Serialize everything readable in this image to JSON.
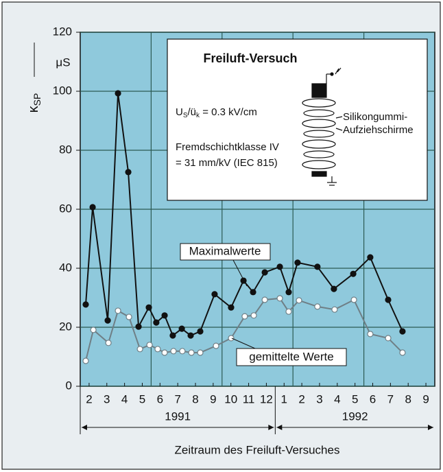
{
  "chart_data": {
    "type": "line",
    "inset": {
      "title": "Freiluft-Versuch",
      "formula": [
        "U",
        "S",
        "/ü",
        "k",
        " = 0.3 kV/cm"
      ],
      "lines": [
        "Fremdschichtklasse IV",
        "= 31 mm/kV (IEC 815)"
      ],
      "insulator_label": [
        "Silikongummi-",
        "Aufziehschirme"
      ]
    },
    "y_label": {
      "symbol": "κ",
      "subscript": "SP",
      "unit": "μS"
    },
    "x_label": "Zeitraum des Freiluft-Versuches",
    "xlim": [
      0,
      20
    ],
    "xticks": [
      {
        "value": 0.5,
        "label": "2"
      },
      {
        "value": 1.5,
        "label": "3"
      },
      {
        "value": 2.5,
        "label": "4"
      },
      {
        "value": 3.5,
        "label": "5"
      },
      {
        "value": 4.5,
        "label": "6"
      },
      {
        "value": 5.5,
        "label": "7"
      },
      {
        "value": 6.5,
        "label": "8"
      },
      {
        "value": 7.5,
        "label": "9"
      },
      {
        "value": 8.5,
        "label": "10"
      },
      {
        "value": 9.5,
        "label": "11"
      },
      {
        "value": 10.5,
        "label": "12"
      },
      {
        "value": 11.5,
        "label": "1"
      },
      {
        "value": 12.5,
        "label": "2"
      },
      {
        "value": 13.5,
        "label": "3"
      },
      {
        "value": 14.5,
        "label": "4"
      },
      {
        "value": 15.5,
        "label": "5"
      },
      {
        "value": 16.5,
        "label": "6"
      },
      {
        "value": 17.5,
        "label": "7"
      },
      {
        "value": 18.5,
        "label": "8"
      },
      {
        "value": 19.5,
        "label": "9"
      }
    ],
    "x_grid": [
      4,
      8,
      12,
      16
    ],
    "year_spans": [
      {
        "label": "1991",
        "range": [
          0,
          11
        ]
      },
      {
        "label": "1992",
        "range": [
          11,
          20
        ]
      }
    ],
    "ylim": [
      0,
      120
    ],
    "yticks": [
      0,
      20,
      40,
      60,
      80,
      100,
      120
    ],
    "grid": true,
    "series": [
      {
        "name": "Maximalwerte",
        "color": "#111111",
        "marker_fill": "#111111",
        "x": [
          0.31,
          0.7,
          1.55,
          2.13,
          2.71,
          3.29,
          3.87,
          4.29,
          4.76,
          5.22,
          5.73,
          6.23,
          6.77,
          7.58,
          8.51,
          9.21,
          9.75,
          10.41,
          11.26,
          11.76,
          12.26,
          13.38,
          14.31,
          15.4,
          16.36,
          17.37,
          18.18
        ],
        "values": [
          27.7,
          60.7,
          22.3,
          99.3,
          72.6,
          20.2,
          26.7,
          21.6,
          24,
          17.2,
          19.5,
          17.2,
          18.6,
          31.2,
          26.7,
          35.8,
          31.9,
          38.6,
          40.5,
          31.9,
          41.9,
          40.5,
          33,
          38.1,
          43.7,
          29.3,
          18.6
        ]
      },
      {
        "name": "gemittelte Werte",
        "color": "#6f7f86",
        "marker_fill": "#ffffff",
        "x": [
          0.31,
          0.74,
          1.59,
          2.13,
          2.75,
          3.37,
          3.91,
          4.37,
          4.76,
          5.26,
          5.76,
          6.27,
          6.77,
          7.66,
          8.51,
          9.28,
          9.79,
          10.41,
          11.26,
          11.76,
          12.34,
          13.38,
          14.35,
          15.44,
          16.36,
          17.37,
          18.18
        ],
        "values": [
          8.6,
          19.1,
          14.7,
          25.6,
          23.5,
          12.6,
          14,
          12.6,
          11.4,
          11.9,
          11.9,
          11.4,
          11.4,
          13.7,
          16.3,
          23.7,
          24,
          29.3,
          29.8,
          25.3,
          29.1,
          27,
          26,
          29.3,
          17.7,
          16.3,
          11.4
        ]
      }
    ]
  }
}
